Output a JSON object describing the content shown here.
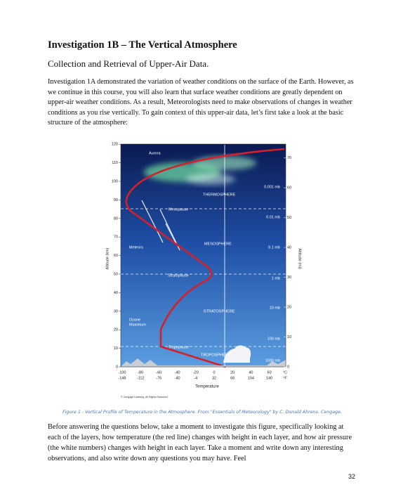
{
  "title": "Investigation 1B – The Vertical Atmosphere",
  "subtitle": "Collection and Retrieval of Upper-Air Data.",
  "intro": "Investigation 1A demonstrated the variation of weather conditions on the surface of the Earth. However, as we continue in this course, you will also learn that surface weather conditions are greatly dependent on upper-air weather conditions. As a result, Meteorologists need to make observations of changes in weather conditions as you rise vertically. To gain context of this upper-air data, let’s first take a look at the basic structure of the atmosphere:",
  "figure": {
    "km_ticks": [
      0,
      10,
      20,
      30,
      40,
      50,
      60,
      70,
      80,
      90,
      100,
      110,
      120
    ],
    "mi_ticks": [
      0,
      10,
      20,
      30,
      40,
      50,
      60,
      70
    ],
    "celsius_ticks": [
      -100,
      -80,
      -60,
      -40,
      -20,
      0,
      20,
      40,
      60
    ],
    "fahrenheit_ticks": [
      -148,
      -112,
      -76,
      -40,
      -4,
      32,
      68,
      104,
      140
    ],
    "celsius_unit": "°C",
    "fahrenheit_unit": "°F",
    "km_axis_label": "Altitude (km)",
    "mi_axis_label": "Altitude (mi)",
    "x_axis_label": "Temperature",
    "labels": {
      "aurora": "Aurora",
      "thermosphere": "THERMOSPHERE",
      "mesopause": "Mesopause",
      "mesosphere": "MESOSPHERE",
      "meteors": "Meteors",
      "stratopause": "Stratopause",
      "stratosphere": "STRATOSPHERE",
      "ozone": [
        "Ozone",
        "Maximum"
      ],
      "tropopause": "Tropopause",
      "troposphere": "TROPOSPHERE"
    },
    "pressures": [
      "0.001 mb",
      "0.01 mb",
      "0.1 mb",
      "1 mb",
      "10 mb",
      "100 mb",
      "1000 mb"
    ],
    "credit": "© Cengage Learning. All Rights Reserved"
  },
  "caption": "Figure 1 - Vertical Profile of Temperature in the Atmosphere. From \"Essentials of Meteorology\" by C. Donald Ahrens. Cengage.",
  "body": "Before answering the questions below, take a moment to investigate this figure, specifically looking at each of the layers, how temperature (the red line) changes with height in each layer, and how air pressure (the white numbers) changes with height in each layer. Take a moment and write down any interesting observations, and also write down any questions you may have. Feel",
  "page_number": "32"
}
